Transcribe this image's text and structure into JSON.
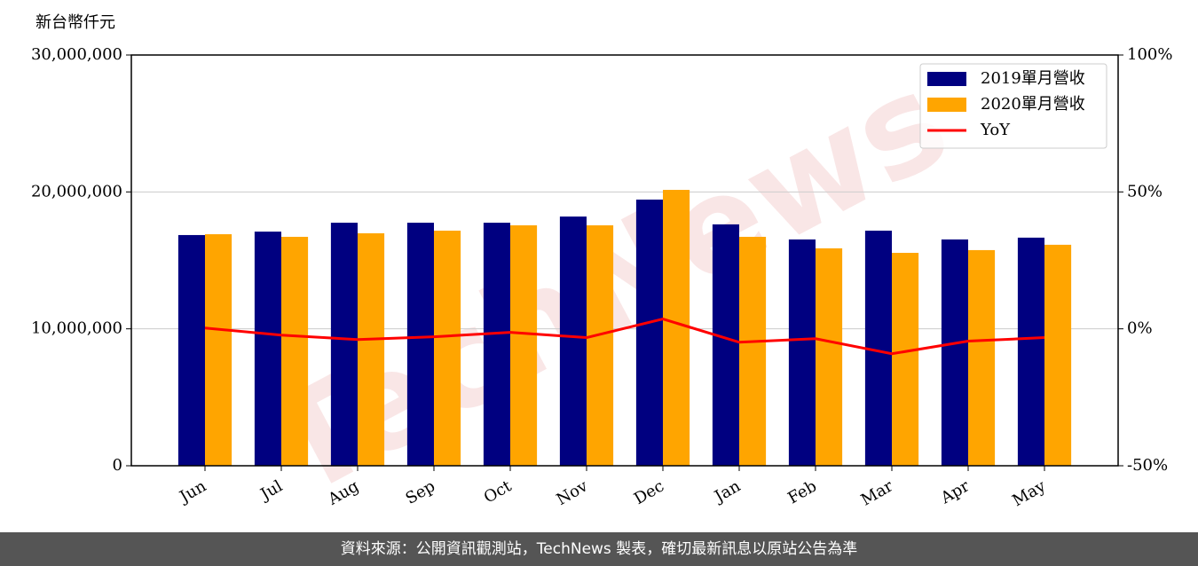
{
  "chart_data": {
    "type": "bar",
    "y_axis_label": "新台幣仟元",
    "categories": [
      "Jun",
      "Jul",
      "Aug",
      "Sep",
      "Oct",
      "Nov",
      "Dec",
      "Jan",
      "Feb",
      "Mar",
      "Apr",
      "May"
    ],
    "series": [
      {
        "name": "2019單月營收",
        "color": "#000080",
        "values": [
          16850000,
          17100000,
          17750000,
          17750000,
          17750000,
          18200000,
          19440000,
          17630000,
          16530000,
          17170000,
          16530000,
          16660000
        ]
      },
      {
        "name": "2020單月營收",
        "color": "#ffa500",
        "values": [
          16910000,
          16720000,
          16980000,
          17170000,
          17560000,
          17560000,
          20150000,
          16720000,
          15880000,
          15550000,
          15750000,
          16140000
        ]
      },
      {
        "name": "YoY",
        "color": "#ff0000",
        "type": "line",
        "axis": "y2",
        "values": [
          0.3,
          -2.3,
          -3.9,
          -2.9,
          -1.3,
          -3.2,
          3.6,
          -4.9,
          -3.6,
          -9.1,
          -4.5,
          -3.2
        ]
      }
    ],
    "ylim": [
      0,
      30000000
    ],
    "yticks": [
      0,
      {
        "value": 10000000,
        "label": "10,000,000"
      },
      {
        "value": 20000000,
        "label": "20,000,000"
      },
      {
        "value": 30000000,
        "label": "30,000,000"
      }
    ],
    "y2lim": [
      -50,
      100
    ],
    "y2ticks": [
      {
        "value": -50,
        "label": "-50%"
      },
      {
        "value": 0,
        "label": "0%"
      },
      {
        "value": 50,
        "label": "50%"
      },
      {
        "value": 100,
        "label": "100%"
      }
    ],
    "grid": true,
    "legend": "upper right",
    "watermark": "TechNews",
    "footer": "資料來源：公開資訊觀測站，TechNews 製表，確切最新訊息以原站公告為準"
  }
}
